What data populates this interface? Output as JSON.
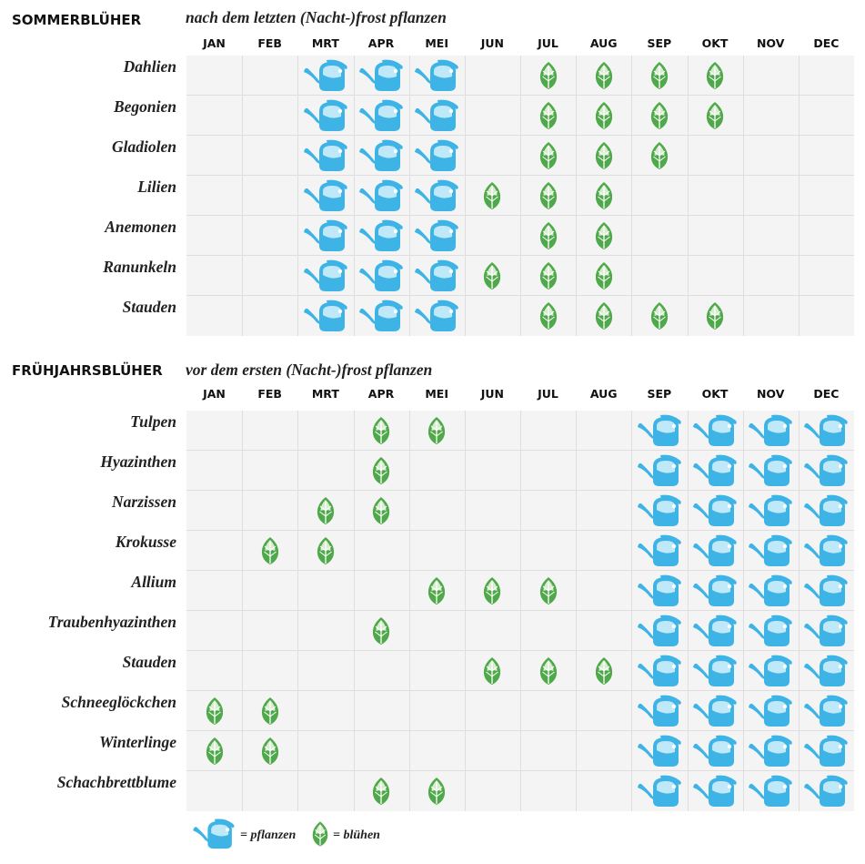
{
  "chart_data": {
    "type": "table",
    "months": [
      "JAN",
      "FEB",
      "MRT",
      "APR",
      "MEI",
      "JUN",
      "JUL",
      "AUG",
      "SEP",
      "OKT",
      "NOV",
      "DEC"
    ],
    "sections": [
      {
        "title": "SOMMERBLÜHER",
        "subtitle": "nach dem letzten (Nacht-)frost pflanzen",
        "rows": [
          {
            "label": "Dahlien",
            "plant": [
              "MRT",
              "APR",
              "MEI"
            ],
            "bloom": [
              "JUL",
              "AUG",
              "SEP",
              "OKT"
            ]
          },
          {
            "label": "Begonien",
            "plant": [
              "MRT",
              "APR",
              "MEI"
            ],
            "bloom": [
              "JUL",
              "AUG",
              "SEP",
              "OKT"
            ]
          },
          {
            "label": "Gladiolen",
            "plant": [
              "MRT",
              "APR",
              "MEI"
            ],
            "bloom": [
              "JUL",
              "AUG",
              "SEP"
            ]
          },
          {
            "label": "Lilien",
            "plant": [
              "MRT",
              "APR",
              "MEI"
            ],
            "bloom": [
              "JUN",
              "JUL",
              "AUG"
            ]
          },
          {
            "label": "Anemonen",
            "plant": [
              "MRT",
              "APR",
              "MEI"
            ],
            "bloom": [
              "JUL",
              "AUG"
            ]
          },
          {
            "label": "Ranunkeln",
            "plant": [
              "MRT",
              "APR",
              "MEI"
            ],
            "bloom": [
              "JUN",
              "JUL",
              "AUG"
            ]
          },
          {
            "label": "Stauden",
            "plant": [
              "MRT",
              "APR",
              "MEI"
            ],
            "bloom": [
              "JUL",
              "AUG",
              "SEP",
              "OKT"
            ]
          }
        ]
      },
      {
        "title": "FRÜHJAHRSBLÜHER",
        "subtitle": "vor dem ersten (Nacht-)frost pflanzen",
        "rows": [
          {
            "label": "Tulpen",
            "plant": [
              "SEP",
              "OKT",
              "NOV",
              "DEC"
            ],
            "bloom": [
              "APR",
              "MEI"
            ]
          },
          {
            "label": "Hyazinthen",
            "plant": [
              "SEP",
              "OKT",
              "NOV",
              "DEC"
            ],
            "bloom": [
              "APR"
            ]
          },
          {
            "label": "Narzissen",
            "plant": [
              "SEP",
              "OKT",
              "NOV",
              "DEC"
            ],
            "bloom": [
              "MRT",
              "APR"
            ]
          },
          {
            "label": "Krokusse",
            "plant": [
              "SEP",
              "OKT",
              "NOV",
              "DEC"
            ],
            "bloom": [
              "FEB",
              "MRT"
            ]
          },
          {
            "label": "Allium",
            "plant": [
              "SEP",
              "OKT",
              "NOV",
              "DEC"
            ],
            "bloom": [
              "MEI",
              "JUN",
              "JUL"
            ]
          },
          {
            "label": "Traubenhyazinthen",
            "plant": [
              "SEP",
              "OKT",
              "NOV",
              "DEC"
            ],
            "bloom": [
              "APR"
            ]
          },
          {
            "label": "Stauden",
            "plant": [
              "SEP",
              "OKT",
              "NOV",
              "DEC"
            ],
            "bloom": [
              "JUN",
              "JUL",
              "AUG"
            ]
          },
          {
            "label": "Schneeglöckchen",
            "plant": [
              "SEP",
              "OKT",
              "NOV",
              "DEC"
            ],
            "bloom": [
              "JAN",
              "FEB"
            ]
          },
          {
            "label": "Winterlinge",
            "plant": [
              "SEP",
              "OKT",
              "NOV",
              "DEC"
            ],
            "bloom": [
              "JAN",
              "FEB"
            ]
          },
          {
            "label": "Schachbrettblume",
            "plant": [
              "SEP",
              "OKT",
              "NOV",
              "DEC"
            ],
            "bloom": [
              "APR",
              "MEI"
            ]
          }
        ]
      }
    ],
    "legend": [
      {
        "icon": "watering-can-icon",
        "text": "= pflanzen"
      },
      {
        "icon": "leaf-icon",
        "text": "= blühen"
      }
    ]
  },
  "colors": {
    "watering_can": "#3db4e5",
    "watering_can_light": "#bfe8f8",
    "leaf": "#4fa84a",
    "leaf_light": "#d7ecd1",
    "grid_bg": "#f4f4f4",
    "grid_line": "#dedede"
  }
}
